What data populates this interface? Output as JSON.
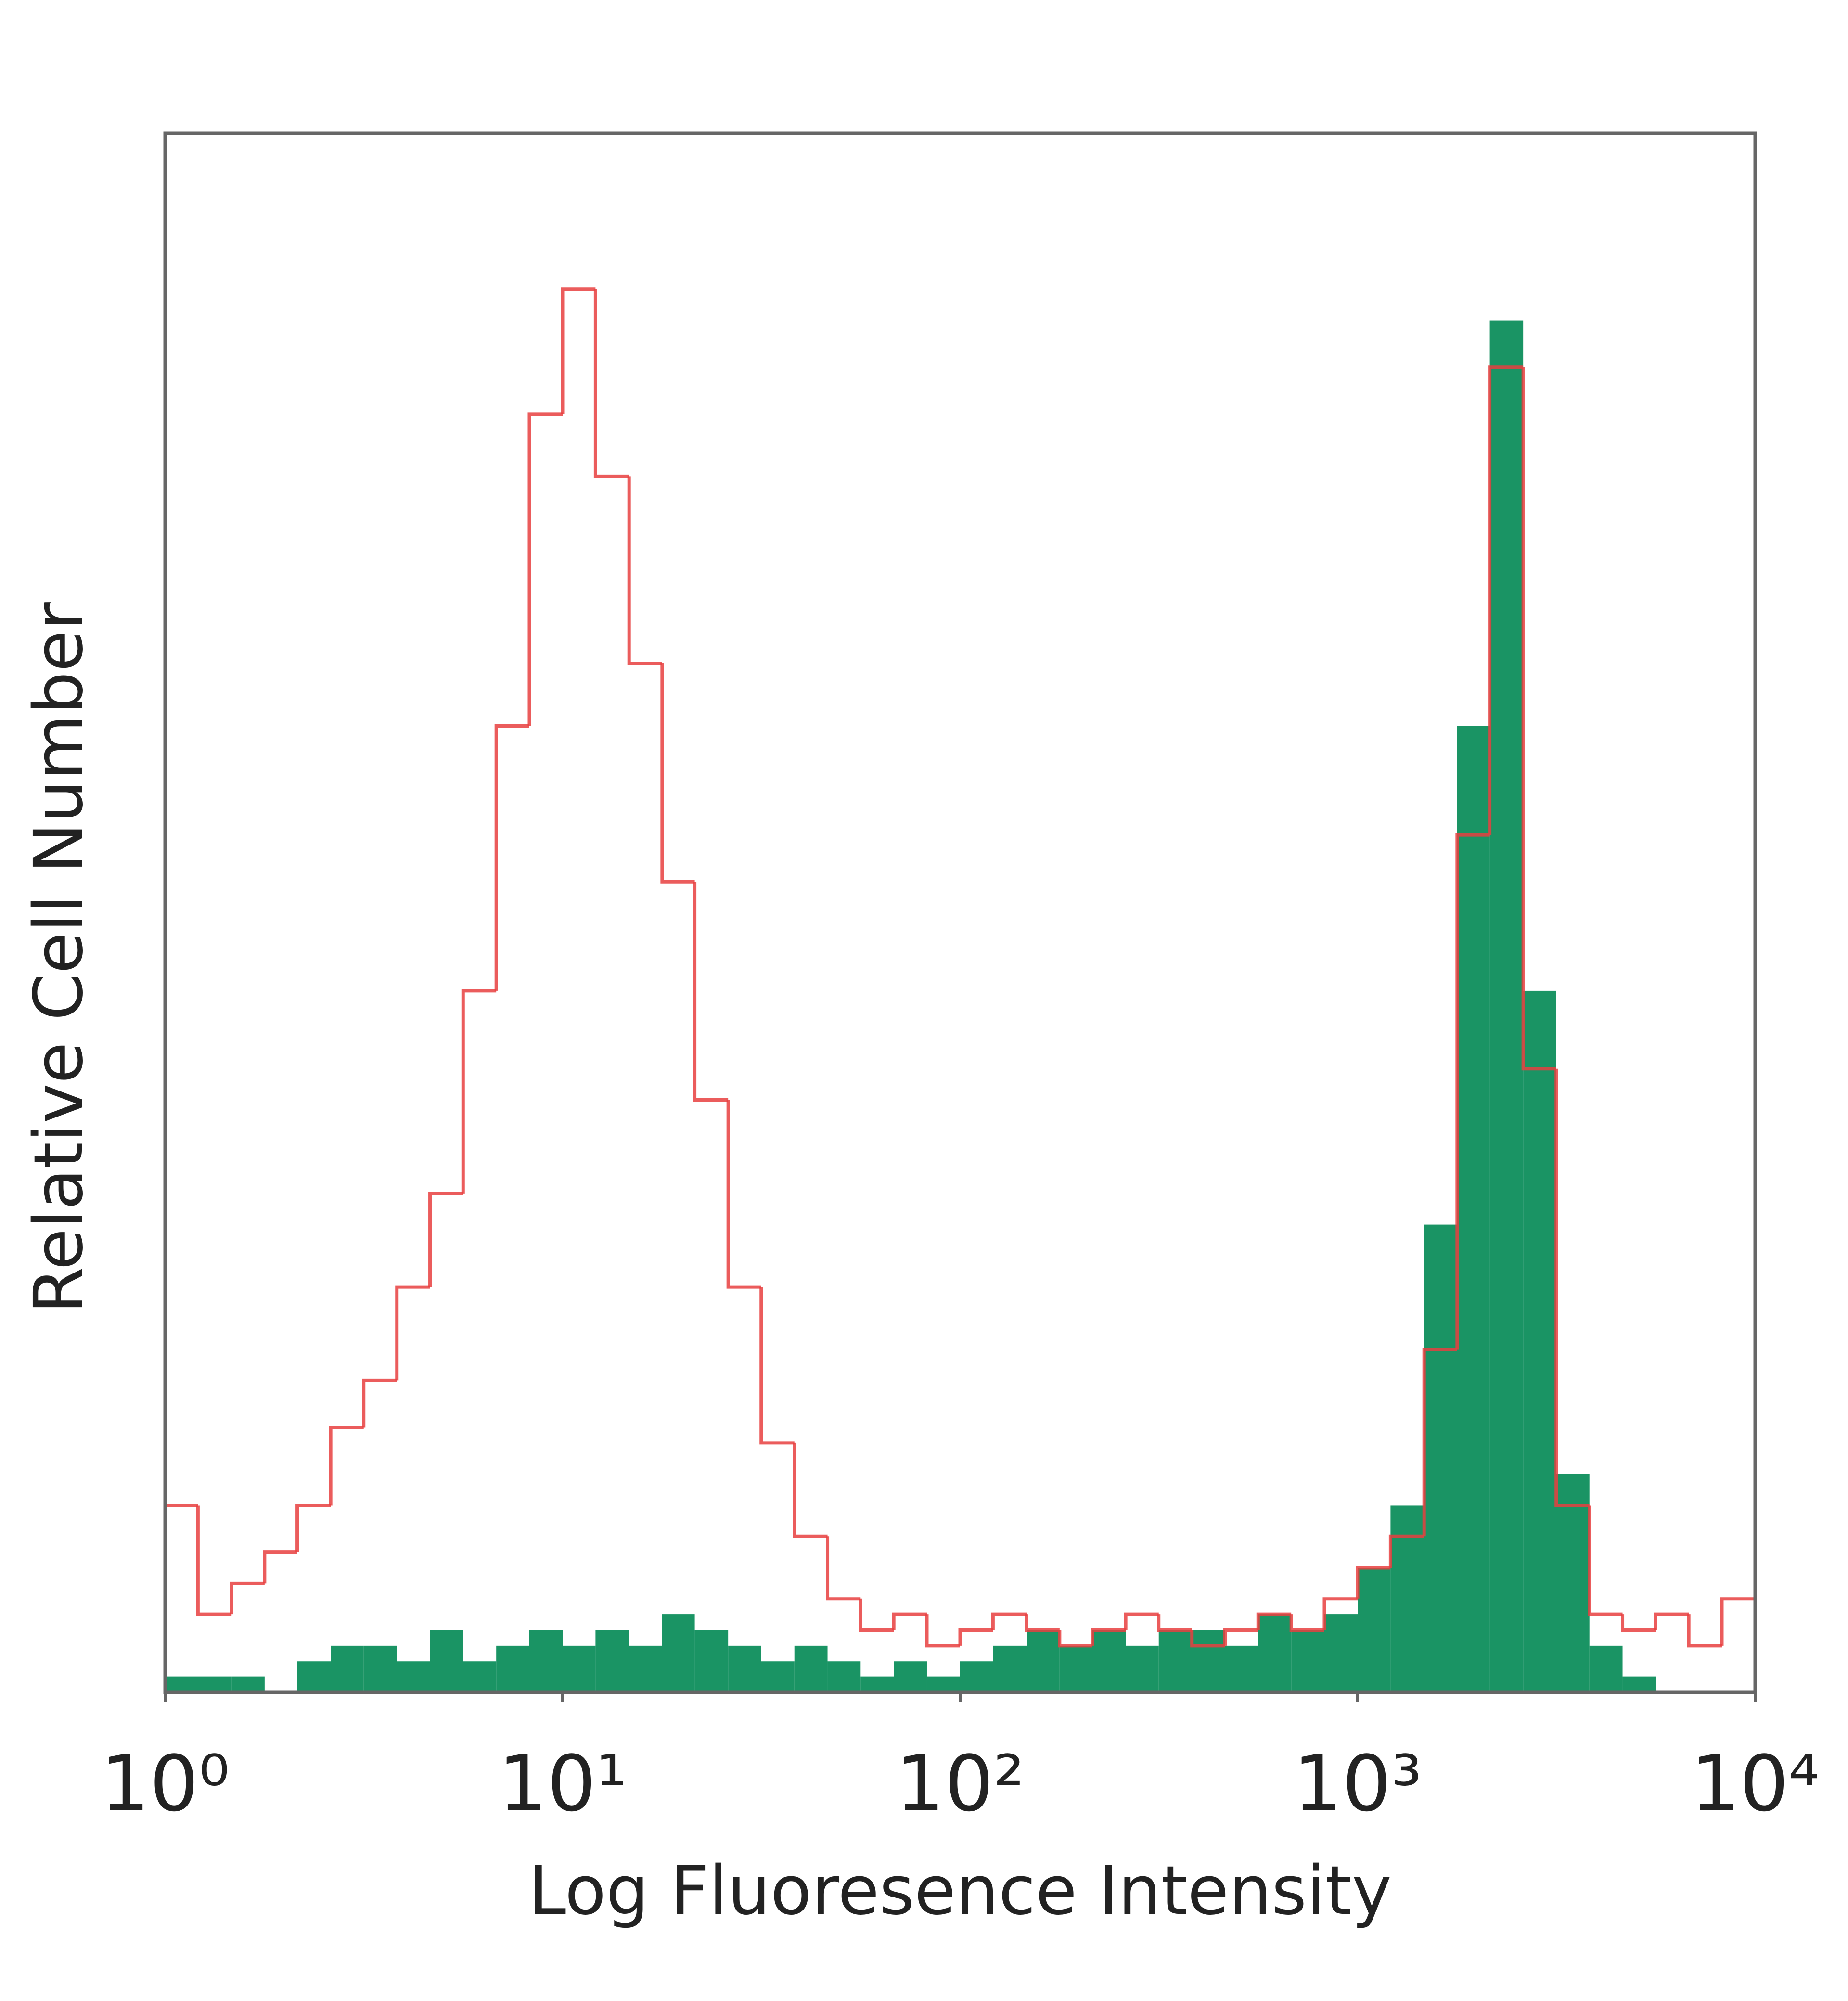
{
  "chart_data": {
    "type": "histogram",
    "x_label": "Log Fluoresence Intensity",
    "y_label": "Relative Cell Number",
    "xscale": "log",
    "xlim": [
      1,
      10000
    ],
    "xticks": [
      {
        "value": 1,
        "label": "10⁰"
      },
      {
        "value": 10,
        "label": "10¹"
      },
      {
        "value": 100,
        "label": "10²"
      },
      {
        "value": 1000,
        "label": "10³"
      },
      {
        "value": 10000,
        "label": "10⁴"
      }
    ],
    "ylim": [
      0,
      100
    ],
    "bins": [
      1,
      1.21,
      1.47,
      1.78,
      2.15,
      2.61,
      3.16,
      3.83,
      4.64,
      5.62,
      6.81,
      8.25,
      10,
      12.1,
      14.7,
      17.8,
      21.5,
      26.1,
      31.6,
      38.3,
      46.4,
      56.2,
      68.1,
      82.5,
      100,
      121,
      147,
      178,
      215,
      261,
      316,
      383,
      464,
      562,
      681,
      825,
      1000,
      1210,
      1470,
      1780,
      2150,
      2610,
      3160,
      3830,
      4640,
      5620,
      6810,
      8250,
      10000
    ],
    "series": [
      {
        "color": "#1a9464",
        "fill": true,
        "values": [
          1,
          1,
          1,
          0,
          2,
          3,
          3,
          2,
          4,
          2,
          3,
          4,
          3,
          4,
          3,
          5,
          4,
          3,
          2,
          3,
          2,
          1,
          2,
          1,
          2,
          3,
          4,
          3,
          4,
          3,
          4,
          4,
          3,
          5,
          4,
          5,
          8,
          12,
          30,
          62,
          88,
          45,
          14,
          3,
          1,
          0,
          0,
          0
        ]
      },
      {
        "color": "#e8403f",
        "fill": false,
        "values": [
          12,
          5,
          7,
          9,
          12,
          17,
          20,
          26,
          32,
          45,
          62,
          82,
          90,
          78,
          66,
          52,
          38,
          26,
          16,
          10,
          6,
          4,
          5,
          3,
          4,
          5,
          4,
          3,
          4,
          5,
          4,
          3,
          4,
          5,
          4,
          6,
          8,
          10,
          22,
          55,
          85,
          40,
          12,
          5,
          4,
          5,
          3,
          6
        ]
      }
    ]
  }
}
